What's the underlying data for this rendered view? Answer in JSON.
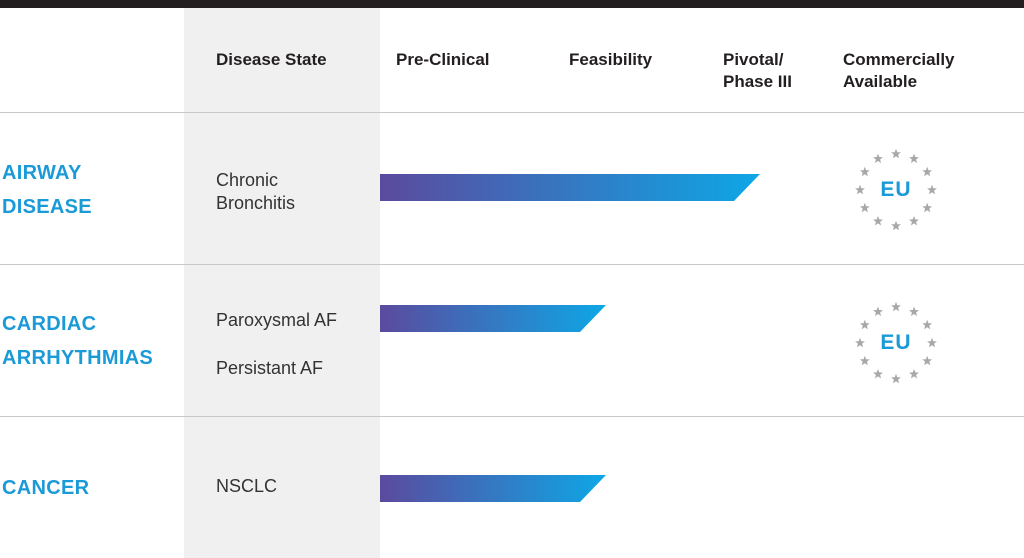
{
  "header": {
    "disease_state": "Disease State",
    "stages": [
      "Pre-Clinical",
      "Feasibility",
      "Pivotal/\nPhase III",
      "Commercially\nAvailable"
    ]
  },
  "rows": [
    {
      "category": "AIRWAY\nDISEASE",
      "states": [
        "Chronic\nBronchitis"
      ],
      "eu_label": "EU"
    },
    {
      "category": "CARDIAC\nARRHYTHMIAS",
      "states": [
        "Paroxysmal AF",
        "Persistant AF"
      ],
      "eu_label": "EU"
    },
    {
      "category": "CANCER",
      "states": [
        "NSCLC"
      ],
      "eu_label": ""
    }
  ],
  "chart_data": {
    "type": "bar",
    "orientation": "horizontal",
    "categories": [
      "Chronic Bronchitis",
      "Paroxysmal AF",
      "NSCLC"
    ],
    "stages": [
      "Pre-Clinical",
      "Feasibility",
      "Pivotal/Phase III",
      "Commercially Available"
    ],
    "values": [
      3,
      2,
      2
    ],
    "commercially_available_eu": [
      true,
      true,
      false
    ],
    "xlim": [
      0,
      4
    ],
    "grid": false
  },
  "colors": {
    "bar_start": "#5b4a9e",
    "bar_end": "#0da7e6",
    "category_text": "#1a9ad7",
    "eu_star": "#a8a8a8",
    "eu_text": "#1a9ad7"
  },
  "icons": {
    "eu_badge": "eu-stars-icon"
  }
}
